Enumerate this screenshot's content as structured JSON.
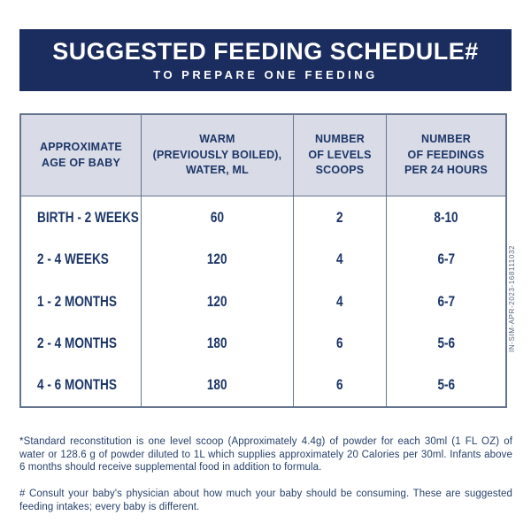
{
  "banner": {
    "title": "SUGGESTED FEEDING SCHEDULE#",
    "subtitle": "TO PREPARE ONE FEEDING"
  },
  "table": {
    "headers": [
      "APPROXIMATE\nAGE OF BABY",
      "WARM\n(PREVIOUSLY BOILED),\nWATER, ML",
      "NUMBER\nOF LEVELS\nSCOOPS",
      "NUMBER\nOF FEEDINGS\nPER 24 HOURS"
    ],
    "rows": [
      {
        "age": "BIRTH - 2 WEEKS",
        "water_ml": "60",
        "scoops": "2",
        "feedings": "8-10"
      },
      {
        "age": "2 - 4 WEEKS",
        "water_ml": "120",
        "scoops": "4",
        "feedings": "6-7"
      },
      {
        "age": "1 - 2 MONTHS",
        "water_ml": "120",
        "scoops": "4",
        "feedings": "6-7"
      },
      {
        "age": "2 - 4 MONTHS",
        "water_ml": "180",
        "scoops": "6",
        "feedings": "5-6"
      },
      {
        "age": "4 - 6 MONTHS",
        "water_ml": "180",
        "scoops": "6",
        "feedings": "5-6"
      }
    ]
  },
  "side_code": "IN-SIM-APR-2023-168111032",
  "footnotes": {
    "standard_reconstitution": "*Standard reconstitution is one level scoop (Approximately 4.4g) of powder for each 30ml (1 FL OZ) of water or 128.6 g of powder diluted to 1L which supplies approximately 20 Calories per 30ml. Infants above 6 months should receive supplemental food in addition to formula.",
    "consult_physician": "# Consult your baby's physician about how much your baby should be consuming. These are suggested feeding intakes; every baby is different."
  },
  "colors": {
    "banner_bg": "#1b2c5e",
    "banner_text": "#ffffff",
    "header_bg": "#d9dbe7",
    "table_border": "#64748f",
    "table_text": "#1c3667",
    "footnote_text": "#27406b",
    "side_code_text": "#55637e"
  }
}
